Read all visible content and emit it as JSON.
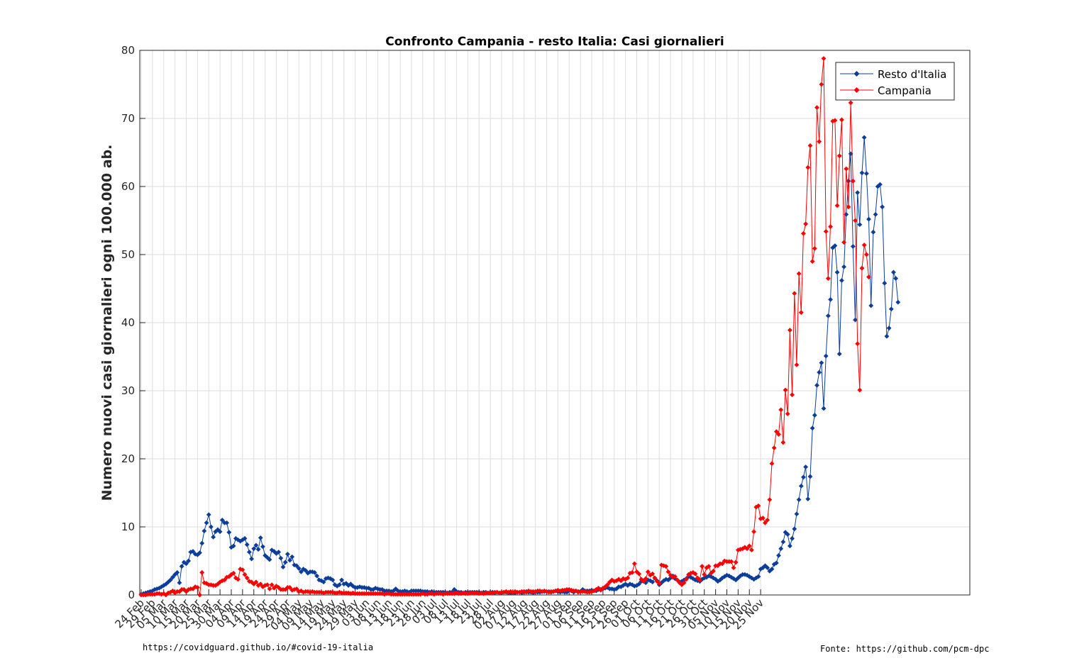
{
  "chart_data": {
    "type": "line",
    "title": "Confronto Campania - resto Italia: Casi giornalieri",
    "xlabel": "",
    "ylabel": "Numero nuovi casi giornalieri ogni 100.000 ab.",
    "ylim": [
      0,
      80
    ],
    "yticks": [
      0,
      10,
      20,
      30,
      40,
      50,
      60,
      70,
      80
    ],
    "grid": true,
    "legend_position": "top-right",
    "x_start": "24 Feb",
    "x_tick_step_days": 5,
    "x_tick_labels": [
      "24 Feb",
      "29 Feb",
      "05 Mar",
      "10 Mar",
      "15 Mar",
      "20 Mar",
      "25 Mar",
      "30 Mar",
      "04 Apr",
      "09 Apr",
      "14 Apr",
      "19 Apr",
      "24 Apr",
      "29 Apr",
      "04 May",
      "09 May",
      "14 May",
      "19 May",
      "24 May",
      "29 May",
      "03 Jun",
      "08 Jun",
      "13 Jun",
      "18 Jun",
      "23 Jun",
      "28 Jun",
      "03 Jul",
      "08 Jul",
      "13 Jul",
      "18 Jul",
      "23 Jul",
      "28 Jul",
      "02 Aug",
      "07 Aug",
      "12 Aug",
      "17 Aug",
      "22 Aug",
      "27 Aug",
      "01 Sep",
      "06 Sep",
      "11 Sep",
      "16 Sep",
      "21 Sep",
      "26 Sep",
      "01 Oct",
      "06 Oct",
      "11 Oct",
      "16 Oct",
      "21 Oct",
      "26 Oct",
      "31 Oct",
      "05 Nov",
      "10 Nov",
      "15 Nov",
      "20 Nov",
      "25 Nov"
    ],
    "series": [
      {
        "name": "Resto d'Italia",
        "color": "#0b3d9c",
        "values": [
          0.1,
          0.2,
          0.3,
          0.4,
          0.5,
          0.6,
          0.8,
          0.9,
          1.0,
          1.2,
          1.4,
          1.6,
          1.9,
          2.2,
          2.6,
          3.0,
          3.3,
          1.8,
          4.2,
          4.8,
          4.6,
          5.0,
          6.3,
          6.4,
          6.0,
          5.9,
          6.2,
          7.6,
          9.4,
          10.6,
          11.8,
          10.0,
          8.5,
          9.3,
          9.6,
          9.3,
          11.0,
          10.6,
          10.6,
          9.2,
          7.0,
          7.2,
          8.3,
          8.1,
          7.9,
          8.1,
          8.3,
          7.4,
          6.3,
          5.3,
          6.8,
          7.3,
          6.7,
          8.4,
          7.1,
          5.8,
          5.5,
          5.2,
          6.6,
          6.4,
          6.1,
          6.3,
          5.4,
          4.1,
          4.8,
          6.0,
          5.1,
          5.6,
          4.4,
          4.3,
          3.9,
          3.4,
          3.8,
          3.6,
          3.2,
          3.4,
          3.4,
          3.3,
          2.8,
          2.2,
          2.1,
          1.9,
          2.4,
          2.5,
          2.4,
          2.2,
          1.5,
          1.3,
          1.5,
          2.2,
          1.6,
          1.7,
          1.4,
          1.6,
          1.3,
          1.1,
          1.1,
          1.2,
          1.1,
          1.1,
          1.0,
          1.0,
          0.8,
          0.8,
          1.0,
          0.9,
          0.8,
          0.8,
          0.6,
          0.6,
          0.6,
          0.5,
          0.6,
          0.9,
          0.6,
          0.5,
          0.5,
          0.6,
          0.5,
          0.4,
          0.6,
          0.6,
          0.6,
          0.6,
          0.6,
          0.5,
          0.5,
          0.5,
          0.4,
          0.5,
          0.4,
          0.4,
          0.4,
          0.4,
          0.4,
          0.4,
          0.3,
          0.4,
          0.4,
          0.8,
          0.5,
          0.4,
          0.4,
          0.3,
          0.4,
          0.4,
          0.4,
          0.4,
          0.4,
          0.4,
          0.4,
          0.3,
          0.4,
          0.4,
          0.3,
          0.4,
          0.4,
          0.3,
          0.4,
          0.3,
          0.3,
          0.4,
          0.4,
          0.3,
          0.3,
          0.3,
          0.3,
          0.4,
          0.4,
          0.3,
          0.4,
          0.5,
          0.4,
          0.4,
          0.3,
          0.4,
          0.4,
          0.4,
          0.5,
          0.5,
          0.5,
          0.5,
          0.4,
          0.5,
          0.6,
          0.5,
          0.4,
          0.5,
          0.4,
          0.4,
          0.7,
          0.6,
          0.4,
          0.6,
          0.5,
          0.5,
          0.8,
          0.6,
          0.6,
          0.6,
          0.7,
          0.6,
          0.6,
          0.8,
          0.8,
          0.9,
          1.0,
          1.1,
          0.9,
          0.9,
          0.8,
          0.9,
          1.2,
          1.2,
          1.4,
          1.6,
          1.4,
          1.6,
          1.5,
          1.3,
          1.4,
          1.6,
          2.0,
          2.1,
          1.8,
          2.2,
          2.1,
          1.9,
          2.5,
          2.1,
          1.5,
          1.8,
          2.1,
          2.3,
          2.2,
          2.5,
          2.8,
          2.4,
          2.2,
          1.9,
          2.0,
          2.2,
          2.4,
          2.7,
          2.6,
          2.4,
          2.2,
          2.1,
          2.0,
          2.3,
          2.5,
          2.6,
          2.8,
          2.7,
          2.5,
          2.3,
          2.0,
          2.2,
          2.5,
          2.7,
          2.9,
          2.8,
          2.6,
          2.4,
          2.2,
          2.5,
          2.8,
          3.0,
          3.0,
          2.9,
          2.7,
          2.5,
          2.3,
          2.5,
          2.7,
          3.8,
          4.0,
          4.3,
          4.0,
          3.5,
          3.8,
          4.5,
          4.7,
          5.8,
          6.8,
          7.8,
          9.2,
          8.9,
          7.2,
          8.3,
          9.7,
          11.9,
          14.0,
          16.0,
          17.3,
          18.8,
          14.1,
          17.4,
          24.5,
          26.4,
          30.8,
          32.7,
          34.1,
          27.4,
          35.1,
          41.0,
          43.4,
          51.0,
          51.3,
          47.4,
          35.4,
          46.2,
          48.2,
          55.9,
          60.8,
          64.8,
          51.2,
          40.4,
          59.1,
          54.4,
          62.0,
          67.2,
          61.9,
          55.2,
          42.5,
          53.3,
          55.9,
          60.0,
          60.3,
          57.0,
          45.8,
          38.0,
          39.2,
          42.0,
          47.4,
          46.5,
          43.0
        ]
      },
      {
        "name": "Campania",
        "color": "#ff0000",
        "values": [
          0.0,
          0.0,
          0.0,
          0.1,
          0.1,
          0.1,
          0.1,
          0.2,
          0.2,
          0.1,
          0.2,
          0.0,
          0.3,
          0.4,
          0.6,
          0.3,
          0.5,
          0.5,
          0.8,
          0.8,
          0.5,
          0.8,
          0.9,
          0.9,
          1.2,
          1.1,
          0.0,
          3.3,
          1.8,
          1.7,
          1.5,
          1.5,
          1.4,
          1.4,
          1.6,
          1.9,
          2.1,
          2.2,
          2.6,
          2.7,
          3.0,
          3.2,
          2.5,
          2.3,
          3.8,
          3.7,
          3.0,
          2.5,
          2.0,
          1.9,
          1.6,
          1.9,
          1.4,
          1.6,
          1.2,
          1.4,
          1.5,
          0.9,
          1.5,
          1.0,
          1.3,
          1.1,
          0.8,
          0.8,
          0.8,
          1.1,
          1.1,
          0.7,
          0.8,
          0.9,
          0.5,
          0.6,
          0.4,
          0.5,
          0.5,
          0.4,
          0.5,
          0.4,
          0.4,
          0.4,
          0.4,
          0.3,
          0.4,
          0.4,
          0.4,
          0.4,
          0.3,
          0.3,
          0.4,
          0.3,
          0.3,
          0.3,
          0.3,
          0.2,
          0.3,
          0.2,
          0.2,
          0.2,
          0.2,
          0.2,
          0.2,
          0.2,
          0.2,
          0.2,
          0.2,
          0.2,
          0.2,
          0.2,
          0.1,
          0.2,
          0.2,
          0.1,
          0.1,
          0.1,
          0.1,
          0.1,
          0.1,
          0.1,
          0.1,
          0.1,
          0.1,
          0.1,
          0.1,
          0.1,
          0.1,
          0.2,
          0.1,
          0.1,
          0.2,
          0.2,
          0.1,
          0.2,
          0.2,
          0.2,
          0.1,
          0.2,
          0.2,
          0.2,
          0.2,
          0.2,
          0.3,
          0.2,
          0.2,
          0.3,
          0.2,
          0.2,
          0.3,
          0.3,
          0.3,
          0.3,
          0.2,
          0.3,
          0.2,
          0.3,
          0.3,
          0.3,
          0.3,
          0.4,
          0.4,
          0.3,
          0.4,
          0.4,
          0.5,
          0.4,
          0.5,
          0.4,
          0.5,
          0.4,
          0.4,
          0.5,
          0.5,
          0.4,
          0.6,
          0.5,
          0.5,
          0.5,
          0.6,
          0.6,
          0.5,
          0.6,
          0.5,
          0.4,
          0.5,
          0.5,
          0.6,
          0.7,
          0.6,
          0.7,
          0.7,
          0.8,
          0.8,
          0.7,
          0.6,
          0.6,
          0.4,
          0.5,
          0.5,
          0.5,
          0.4,
          0.4,
          0.5,
          0.6,
          0.8,
          1.0,
          0.7,
          1.0,
          1.2,
          1.5,
          1.9,
          2.2,
          2.0,
          2.1,
          2.3,
          2.1,
          2.4,
          2.3,
          2.5,
          3.2,
          3.3,
          4.6,
          3.4,
          3.1,
          2.3,
          2.0,
          2.4,
          3.4,
          2.9,
          3.1,
          2.5,
          2.0,
          1.7,
          4.4,
          4.3,
          4.2,
          3.4,
          2.9,
          2.6,
          2.7,
          2.2,
          1.8,
          1.5,
          1.8,
          2.3,
          3.0,
          3.2,
          3.3,
          3.1,
          2.5,
          2.2,
          4.2,
          3.0,
          4.0,
          4.2,
          3.2,
          3.5,
          4.3,
          4.3,
          4.6,
          4.6,
          5.0,
          4.9,
          4.9,
          4.9,
          4.0,
          4.8,
          6.6,
          6.7,
          6.8,
          7.0,
          6.8,
          7.2,
          6.6,
          9.3,
          12.9,
          13.1,
          11.2,
          11.3,
          10.6,
          11.0,
          14.0,
          19.3,
          21.6,
          24.0,
          23.6,
          27.2,
          22.4,
          30.1,
          26.6,
          38.9,
          29.4,
          44.3,
          33.8,
          47.2,
          41.5,
          53.1,
          54.5,
          62.8,
          66.0,
          49.0,
          50.9,
          71.6,
          66.6,
          75.0,
          78.8,
          53.4,
          46.5,
          54.1,
          69.6,
          69.7,
          57.2,
          64.5,
          69.8,
          51.8,
          62.6,
          57.0,
          72.3,
          60.8,
          55.0,
          36.9,
          30.1,
          48.0,
          51.4,
          50.0,
          46.7
        ]
      }
    ]
  },
  "footer": {
    "left": "https://covidguard.github.io/#covid-19-italia",
    "right": "Fonte: https://github.com/pcm-dpc"
  }
}
